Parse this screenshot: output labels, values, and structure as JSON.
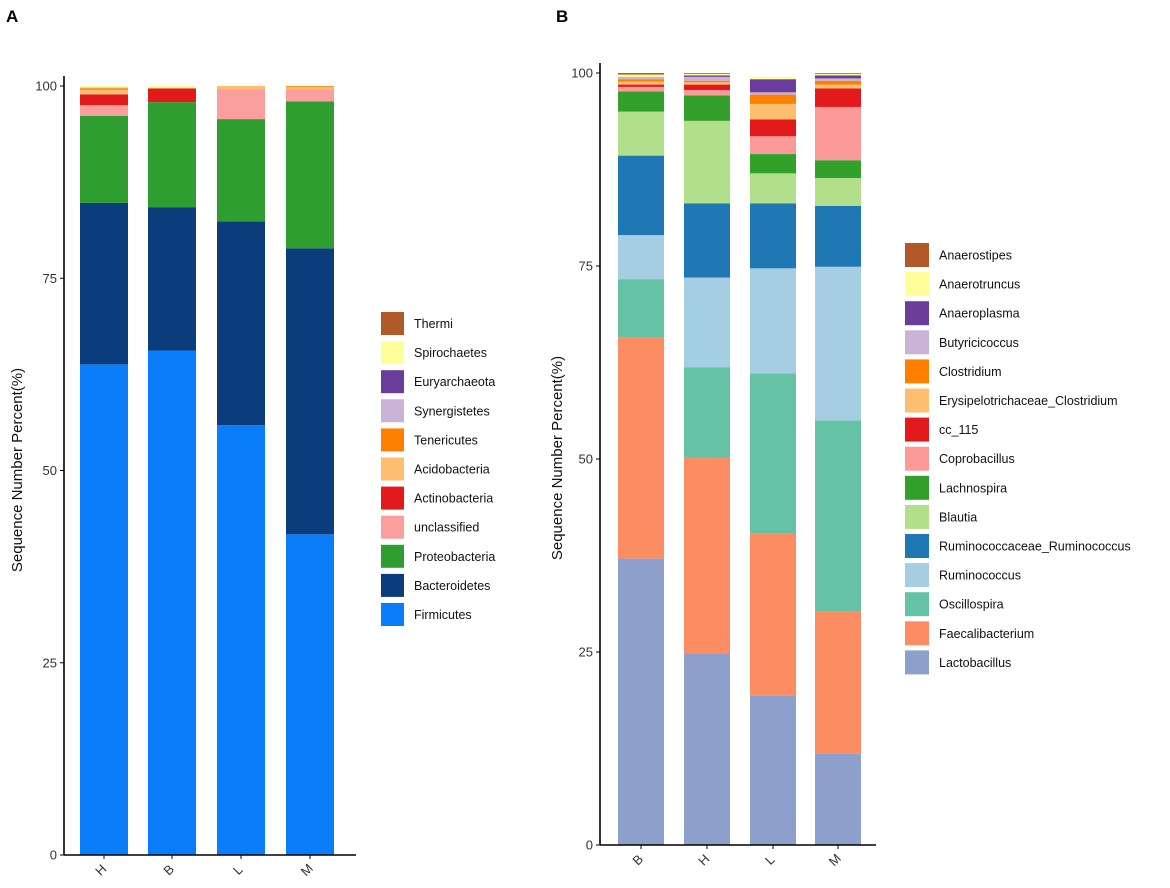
{
  "chart_data": [
    {
      "panel_label": "A",
      "type": "bar",
      "stacked": true,
      "ylabel": "Sequence Number Percent(%)",
      "xlabel": "",
      "ylim": [
        0,
        100
      ],
      "yticks": [
        0,
        25,
        50,
        75,
        100
      ],
      "categories": [
        "H",
        "B",
        "L",
        "M"
      ],
      "legend_position": "right",
      "series": [
        {
          "name": "Firmicutes",
          "color": "#0A7DFA",
          "values": [
            63.8,
            65.6,
            55.9,
            41.7
          ]
        },
        {
          "name": "Bacteroidetes",
          "color": "#0B3C7B",
          "values": [
            21.0,
            18.6,
            26.5,
            37.2
          ]
        },
        {
          "name": "Proteobacteria",
          "color": "#2E9E30",
          "values": [
            11.3,
            13.7,
            13.3,
            19.1
          ]
        },
        {
          "name": "unclassified",
          "color": "#FB9E9E",
          "values": [
            1.4,
            0.0,
            3.9,
            1.6
          ]
        },
        {
          "name": "Actinobacteria",
          "color": "#E31A1C",
          "values": [
            1.4,
            1.8,
            0.0,
            0.0
          ]
        },
        {
          "name": "Acidobacteria",
          "color": "#FDBF6F",
          "values": [
            0.6,
            0.0,
            0.4,
            0.3
          ]
        },
        {
          "name": "Tenericutes",
          "color": "#FF7F00",
          "values": [
            0.2,
            0.0,
            0.0,
            0.1
          ]
        },
        {
          "name": "Synergistetes",
          "color": "#CAB2D6",
          "values": [
            0.1,
            0.0,
            0.0,
            0.0
          ]
        },
        {
          "name": "Euryarchaeota",
          "color": "#6A3D9A",
          "values": [
            0.0,
            0.0,
            0.0,
            0.0
          ]
        },
        {
          "name": "Spirochaetes",
          "color": "#FFFF99",
          "values": [
            0.2,
            0.3,
            0.0,
            0.0
          ]
        },
        {
          "name": "Thermi",
          "color": "#B15928",
          "values": [
            0.0,
            0.0,
            0.0,
            0.0
          ]
        }
      ]
    },
    {
      "panel_label": "B",
      "type": "bar",
      "stacked": true,
      "ylabel": "Sequence Number Percent(%)",
      "xlabel": "",
      "ylim": [
        0,
        100
      ],
      "yticks": [
        0,
        25,
        50,
        75,
        100
      ],
      "categories": [
        "B",
        "H",
        "L",
        "M"
      ],
      "legend_position": "right",
      "series": [
        {
          "name": "Lactobacillus",
          "color": "#8DA0CB",
          "values": [
            37.1,
            24.8,
            19.4,
            11.8
          ]
        },
        {
          "name": "Faecalibacterium",
          "color": "#FC8D62",
          "values": [
            28.6,
            25.4,
            20.9,
            18.5
          ]
        },
        {
          "name": "Oscillospira",
          "color": "#66C2A5",
          "values": [
            7.6,
            11.7,
            20.8,
            24.7
          ]
        },
        {
          "name": "Ruminococcus",
          "color": "#A6CEE3",
          "values": [
            5.7,
            11.6,
            13.6,
            19.9
          ]
        },
        {
          "name": "Ruminococcaceae_Ruminococcus",
          "color": "#1F78B4",
          "values": [
            10.3,
            9.6,
            8.4,
            7.9
          ]
        },
        {
          "name": "Blautia",
          "color": "#B2DF8A",
          "values": [
            5.7,
            10.7,
            3.9,
            3.6
          ]
        },
        {
          "name": "Lachnospira",
          "color": "#33A02C",
          "values": [
            2.6,
            3.3,
            2.5,
            2.3
          ]
        },
        {
          "name": "Coprobacillus",
          "color": "#FB9A99",
          "values": [
            0.6,
            0.7,
            2.3,
            6.9
          ]
        },
        {
          "name": "cc_115",
          "color": "#E31A1C",
          "values": [
            0.3,
            0.7,
            2.2,
            2.4
          ]
        },
        {
          "name": "Erysipelotrichaceae_Clostridium",
          "color": "#FDBF6F",
          "values": [
            0.4,
            0.3,
            2.0,
            0.5
          ]
        },
        {
          "name": "Clostridium",
          "color": "#FF7F00",
          "values": [
            0.3,
            0.2,
            1.2,
            0.5
          ]
        },
        {
          "name": "Butyricicoccus",
          "color": "#CAB2D6",
          "values": [
            0.3,
            0.5,
            0.3,
            0.3
          ]
        },
        {
          "name": "Anaeroplasma",
          "color": "#6A3D9A",
          "values": [
            0.0,
            0.2,
            1.7,
            0.4
          ]
        },
        {
          "name": "Anaerotruncus",
          "color": "#FFFF99",
          "values": [
            0.3,
            0.2,
            0.3,
            0.2
          ]
        },
        {
          "name": "Anaerostipes",
          "color": "#B15928",
          "values": [
            0.2,
            0.1,
            0.0,
            0.1
          ]
        }
      ]
    }
  ]
}
